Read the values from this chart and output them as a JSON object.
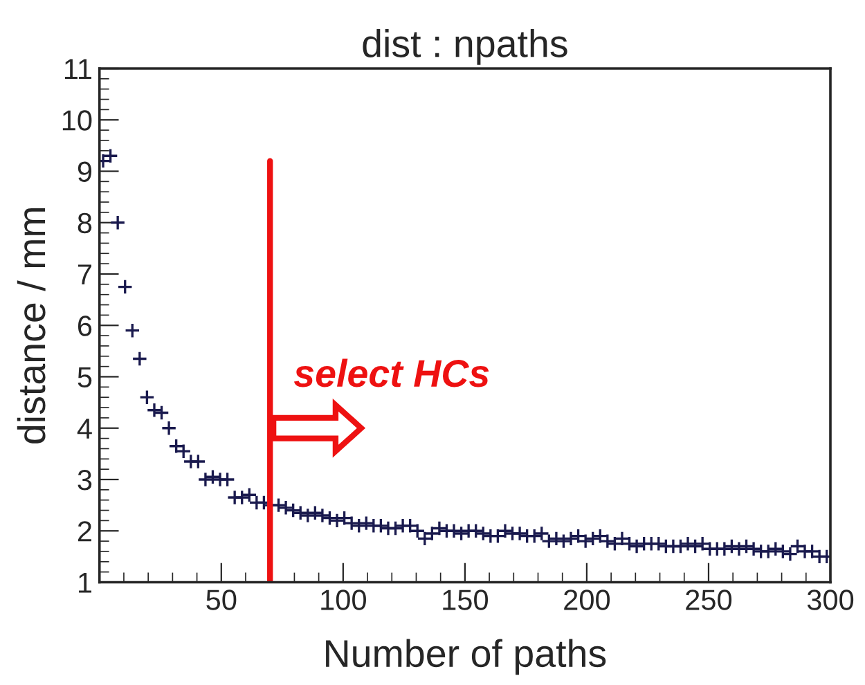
{
  "chart_data": {
    "type": "scatter",
    "title": "dist : npaths",
    "xlabel": "Number of paths",
    "ylabel": "distance / mm",
    "x": [
      1.5,
      4.5,
      7.5,
      10.5,
      13.5,
      16.5,
      19.5,
      22.5,
      25.5,
      28.5,
      31.5,
      34.5,
      37.5,
      40.5,
      43.5,
      46.5,
      49.5,
      52.5,
      55.5,
      58.5,
      61.5,
      64.5,
      67.5,
      70.5,
      73.5,
      76.5,
      79.5,
      82.5,
      85.5,
      88.5,
      91.5,
      94.5,
      97.5,
      100.5,
      103.5,
      106.5,
      109.5,
      112.5,
      115.5,
      118.5,
      121.5,
      124.5,
      127.5,
      130.5,
      133.5,
      136.5,
      139.5,
      142.5,
      145.5,
      148.5,
      151.5,
      154.5,
      157.5,
      160.5,
      163.5,
      166.5,
      169.5,
      172.5,
      175.5,
      178.5,
      181.5,
      184.5,
      187.5,
      190.5,
      193.5,
      196.5,
      199.5,
      202.5,
      205.5,
      208.5,
      211.5,
      214.5,
      217.5,
      220.5,
      223.5,
      226.5,
      229.5,
      232.5,
      235.5,
      238.5,
      241.5,
      244.5,
      247.5,
      250.5,
      253.5,
      256.5,
      259.5,
      262.5,
      265.5,
      268.5,
      271.5,
      274.5,
      277.5,
      280.5,
      283.5,
      286.5,
      289.5,
      292.5,
      295.5,
      298.5
    ],
    "values": [
      9.2,
      9.3,
      8.0,
      6.75,
      5.9,
      5.35,
      4.6,
      4.35,
      4.3,
      4.0,
      3.65,
      3.55,
      3.35,
      3.35,
      3.0,
      3.05,
      3.0,
      3.0,
      2.65,
      2.65,
      2.7,
      2.55,
      2.55,
      2.5,
      2.5,
      2.45,
      2.4,
      2.35,
      2.3,
      2.35,
      2.3,
      2.25,
      2.2,
      2.25,
      2.15,
      2.1,
      2.15,
      2.1,
      2.1,
      2.05,
      2.05,
      2.1,
      2.1,
      2.0,
      1.85,
      1.95,
      2.05,
      2.0,
      2.0,
      1.95,
      2.0,
      2.0,
      1.95,
      1.9,
      1.9,
      2.0,
      1.95,
      1.95,
      1.9,
      1.9,
      1.95,
      1.8,
      1.85,
      1.8,
      1.85,
      1.9,
      1.8,
      1.85,
      1.9,
      1.8,
      1.75,
      1.85,
      1.75,
      1.7,
      1.75,
      1.75,
      1.75,
      1.7,
      1.7,
      1.7,
      1.75,
      1.7,
      1.75,
      1.65,
      1.65,
      1.65,
      1.7,
      1.65,
      1.7,
      1.65,
      1.6,
      1.6,
      1.65,
      1.6,
      1.55,
      1.7,
      1.6,
      1.6,
      1.5,
      1.5
    ],
    "color": "#1a1a4e",
    "marker": "cross",
    "xlim": [
      0,
      300
    ],
    "xticks": [
      {
        "value": 0,
        "label": null
      },
      50,
      100,
      150,
      200,
      250,
      300
    ],
    "ylim": [
      1,
      11
    ],
    "yticks": [
      1,
      2,
      3,
      4,
      5,
      6,
      7,
      8,
      9,
      10,
      11
    ],
    "grid": false,
    "ref_lines": [
      {
        "axis": "x",
        "value": 70,
        "label": null,
        "color": "#ee1111"
      }
    ],
    "annotations": [
      "select HCs"
    ]
  }
}
